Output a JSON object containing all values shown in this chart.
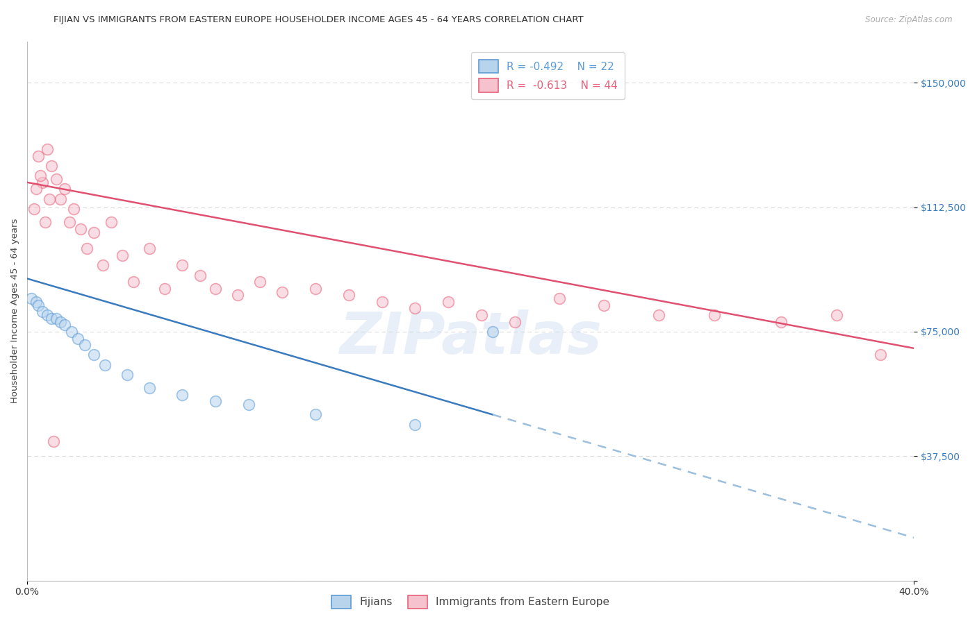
{
  "title": "FIJIAN VS IMMIGRANTS FROM EASTERN EUROPE HOUSEHOLDER INCOME AGES 45 - 64 YEARS CORRELATION CHART",
  "source": "Source: ZipAtlas.com",
  "ylabel": "Householder Income Ages 45 - 64 years",
  "xmin": 0.0,
  "xmax": 40.0,
  "ymin": 0,
  "ymax": 162500,
  "yticks": [
    0,
    37500,
    75000,
    112500,
    150000
  ],
  "ytick_labels": [
    "",
    "$37,500",
    "$75,000",
    "$112,500",
    "$150,000"
  ],
  "background_color": "#ffffff",
  "grid_color": "#d8d8d8",
  "fijian_fill": "#b8d4ed",
  "fijian_edge": "#5b9bd5",
  "eastern_fill": "#f5c2ce",
  "eastern_edge": "#e8607a",
  "fijian_line_color": "#3a7bbf",
  "eastern_line_color": "#e05070",
  "dashed_line_color": "#9bbfdc",
  "legend_label_fijian": "Fijians",
  "legend_label_eastern": "Immigrants from Eastern Europe",
  "tick_color_right": "#3a7bbf",
  "fijian_x": [
    0.2,
    0.4,
    0.5,
    0.7,
    0.9,
    1.1,
    1.3,
    1.5,
    1.7,
    2.0,
    2.3,
    2.6,
    3.0,
    3.5,
    4.5,
    5.5,
    7.0,
    8.5,
    10.0,
    13.0,
    17.5,
    21.0
  ],
  "fijian_y": [
    85000,
    84000,
    83000,
    81000,
    80000,
    79000,
    79000,
    78000,
    77000,
    75000,
    73000,
    71000,
    68000,
    65000,
    62000,
    58000,
    56000,
    54000,
    53000,
    50000,
    47000,
    75000
  ],
  "eastern_x": [
    0.3,
    0.5,
    0.7,
    0.9,
    1.1,
    1.3,
    1.5,
    1.7,
    1.9,
    2.1,
    2.4,
    2.7,
    3.0,
    3.4,
    3.8,
    4.3,
    4.8,
    5.5,
    6.2,
    7.0,
    7.8,
    8.5,
    9.5,
    10.5,
    11.5,
    13.0,
    14.5,
    16.0,
    17.5,
    19.0,
    20.5,
    22.0,
    24.0,
    26.0,
    28.5,
    31.0,
    34.0,
    36.5,
    38.5,
    0.4,
    0.6,
    0.8,
    1.0,
    1.2
  ],
  "eastern_y": [
    112000,
    128000,
    120000,
    130000,
    125000,
    121000,
    115000,
    118000,
    108000,
    112000,
    106000,
    100000,
    105000,
    95000,
    108000,
    98000,
    90000,
    100000,
    88000,
    95000,
    92000,
    88000,
    86000,
    90000,
    87000,
    88000,
    86000,
    84000,
    82000,
    84000,
    80000,
    78000,
    85000,
    83000,
    80000,
    80000,
    78000,
    80000,
    68000,
    118000,
    122000,
    108000,
    115000,
    42000
  ],
  "fijian_trend_x0": 0.0,
  "fijian_trend_y0": 91000,
  "fijian_trend_x1": 21.0,
  "fijian_trend_y1": 50000,
  "fijian_dash_x0": 21.0,
  "fijian_dash_x1": 40.0,
  "eastern_trend_x0": 0.0,
  "eastern_trend_y0": 120000,
  "eastern_trend_x1": 40.0,
  "eastern_trend_y1": 70000,
  "marker_size": 130,
  "marker_alpha": 0.55,
  "marker_linewidth": 1.2,
  "title_fontsize": 9.5,
  "axis_label_fontsize": 9.5,
  "tick_fontsize": 10,
  "legend_fontsize": 11
}
